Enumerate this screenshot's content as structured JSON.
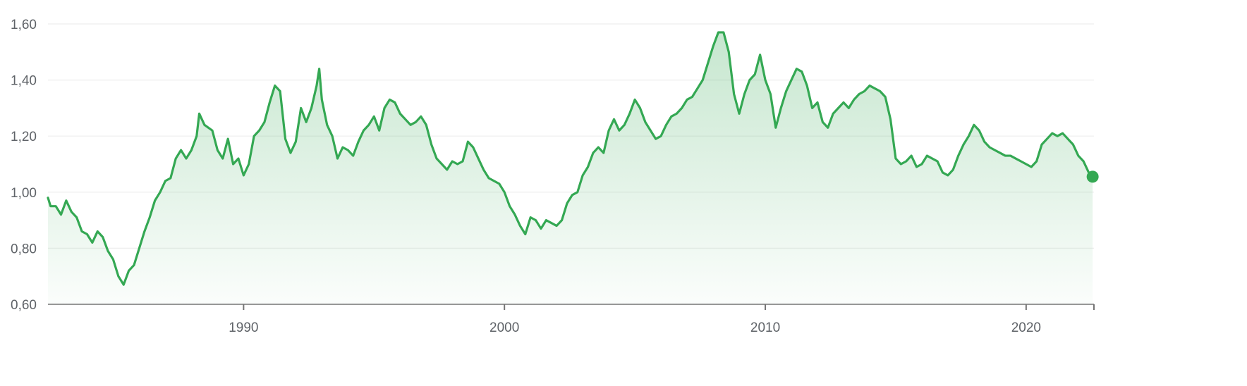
{
  "colors": {
    "line": "#34a853",
    "area_top": "#34a853",
    "grid": "#eeeeee",
    "axis": "#757575",
    "tick_text": "#5f6368"
  },
  "chart_data": {
    "type": "area",
    "title": "",
    "xlabel": "",
    "ylabel": "",
    "xlim": [
      1982.5,
      2022.6
    ],
    "ylim": [
      0.6,
      1.6
    ],
    "grid": true,
    "legend": "none",
    "y_ticks": [
      {
        "value": 0.6,
        "label": "0,60"
      },
      {
        "value": 0.8,
        "label": "0,80"
      },
      {
        "value": 1.0,
        "label": "1,00"
      },
      {
        "value": 1.2,
        "label": "1,20"
      },
      {
        "value": 1.4,
        "label": "1,40"
      },
      {
        "value": 1.6,
        "label": "1,60"
      }
    ],
    "x_ticks": [
      {
        "value": 1990,
        "label": "1990"
      },
      {
        "value": 2000,
        "label": "2000"
      },
      {
        "value": 2010,
        "label": "2010"
      },
      {
        "value": 2020,
        "label": "2020"
      }
    ],
    "series": [
      {
        "points": [
          [
            1982.5,
            0.98
          ],
          [
            1982.6,
            0.95
          ],
          [
            1982.8,
            0.95
          ],
          [
            1983.0,
            0.92
          ],
          [
            1983.2,
            0.97
          ],
          [
            1983.4,
            0.93
          ],
          [
            1983.6,
            0.91
          ],
          [
            1983.8,
            0.86
          ],
          [
            1984.0,
            0.85
          ],
          [
            1984.2,
            0.82
          ],
          [
            1984.4,
            0.86
          ],
          [
            1984.6,
            0.84
          ],
          [
            1984.8,
            0.79
          ],
          [
            1985.0,
            0.76
          ],
          [
            1985.2,
            0.7
          ],
          [
            1985.4,
            0.67
          ],
          [
            1985.6,
            0.72
          ],
          [
            1985.8,
            0.74
          ],
          [
            1986.0,
            0.8
          ],
          [
            1986.2,
            0.86
          ],
          [
            1986.4,
            0.91
          ],
          [
            1986.6,
            0.97
          ],
          [
            1986.8,
            1.0
          ],
          [
            1987.0,
            1.04
          ],
          [
            1987.2,
            1.05
          ],
          [
            1987.4,
            1.12
          ],
          [
            1987.6,
            1.15
          ],
          [
            1987.8,
            1.12
          ],
          [
            1988.0,
            1.15
          ],
          [
            1988.2,
            1.2
          ],
          [
            1988.3,
            1.28
          ],
          [
            1988.5,
            1.24
          ],
          [
            1988.8,
            1.22
          ],
          [
            1989.0,
            1.15
          ],
          [
            1989.2,
            1.12
          ],
          [
            1989.4,
            1.19
          ],
          [
            1989.6,
            1.1
          ],
          [
            1989.8,
            1.12
          ],
          [
            1990.0,
            1.06
          ],
          [
            1990.2,
            1.1
          ],
          [
            1990.4,
            1.2
          ],
          [
            1990.6,
            1.22
          ],
          [
            1990.8,
            1.25
          ],
          [
            1991.0,
            1.32
          ],
          [
            1991.2,
            1.38
          ],
          [
            1991.4,
            1.36
          ],
          [
            1991.6,
            1.19
          ],
          [
            1991.8,
            1.14
          ],
          [
            1992.0,
            1.18
          ],
          [
            1992.2,
            1.3
          ],
          [
            1992.4,
            1.25
          ],
          [
            1992.6,
            1.3
          ],
          [
            1992.8,
            1.38
          ],
          [
            1992.9,
            1.44
          ],
          [
            1993.0,
            1.33
          ],
          [
            1993.2,
            1.24
          ],
          [
            1993.4,
            1.2
          ],
          [
            1993.6,
            1.12
          ],
          [
            1993.8,
            1.16
          ],
          [
            1994.0,
            1.15
          ],
          [
            1994.2,
            1.13
          ],
          [
            1994.4,
            1.18
          ],
          [
            1994.6,
            1.22
          ],
          [
            1994.8,
            1.24
          ],
          [
            1995.0,
            1.27
          ],
          [
            1995.2,
            1.22
          ],
          [
            1995.4,
            1.3
          ],
          [
            1995.6,
            1.33
          ],
          [
            1995.8,
            1.32
          ],
          [
            1996.0,
            1.28
          ],
          [
            1996.2,
            1.26
          ],
          [
            1996.4,
            1.24
          ],
          [
            1996.6,
            1.25
          ],
          [
            1996.8,
            1.27
          ],
          [
            1997.0,
            1.24
          ],
          [
            1997.2,
            1.17
          ],
          [
            1997.4,
            1.12
          ],
          [
            1997.6,
            1.1
          ],
          [
            1997.8,
            1.08
          ],
          [
            1998.0,
            1.11
          ],
          [
            1998.2,
            1.1
          ],
          [
            1998.4,
            1.11
          ],
          [
            1998.6,
            1.18
          ],
          [
            1998.8,
            1.16
          ],
          [
            1999.0,
            1.12
          ],
          [
            1999.2,
            1.08
          ],
          [
            1999.4,
            1.05
          ],
          [
            1999.6,
            1.04
          ],
          [
            1999.8,
            1.03
          ],
          [
            2000.0,
            1.0
          ],
          [
            2000.2,
            0.95
          ],
          [
            2000.4,
            0.92
          ],
          [
            2000.6,
            0.88
          ],
          [
            2000.8,
            0.85
          ],
          [
            2001.0,
            0.91
          ],
          [
            2001.2,
            0.9
          ],
          [
            2001.4,
            0.87
          ],
          [
            2001.6,
            0.9
          ],
          [
            2001.8,
            0.89
          ],
          [
            2002.0,
            0.88
          ],
          [
            2002.2,
            0.9
          ],
          [
            2002.4,
            0.96
          ],
          [
            2002.6,
            0.99
          ],
          [
            2002.8,
            1.0
          ],
          [
            2003.0,
            1.06
          ],
          [
            2003.2,
            1.09
          ],
          [
            2003.4,
            1.14
          ],
          [
            2003.6,
            1.16
          ],
          [
            2003.8,
            1.14
          ],
          [
            2004.0,
            1.22
          ],
          [
            2004.2,
            1.26
          ],
          [
            2004.4,
            1.22
          ],
          [
            2004.6,
            1.24
          ],
          [
            2004.8,
            1.28
          ],
          [
            2005.0,
            1.33
          ],
          [
            2005.2,
            1.3
          ],
          [
            2005.4,
            1.25
          ],
          [
            2005.6,
            1.22
          ],
          [
            2005.8,
            1.19
          ],
          [
            2006.0,
            1.2
          ],
          [
            2006.2,
            1.24
          ],
          [
            2006.4,
            1.27
          ],
          [
            2006.6,
            1.28
          ],
          [
            2006.8,
            1.3
          ],
          [
            2007.0,
            1.33
          ],
          [
            2007.2,
            1.34
          ],
          [
            2007.4,
            1.37
          ],
          [
            2007.6,
            1.4
          ],
          [
            2007.8,
            1.46
          ],
          [
            2008.0,
            1.52
          ],
          [
            2008.2,
            1.57
          ],
          [
            2008.4,
            1.57
          ],
          [
            2008.6,
            1.5
          ],
          [
            2008.8,
            1.35
          ],
          [
            2009.0,
            1.28
          ],
          [
            2009.2,
            1.35
          ],
          [
            2009.4,
            1.4
          ],
          [
            2009.6,
            1.42
          ],
          [
            2009.8,
            1.49
          ],
          [
            2010.0,
            1.4
          ],
          [
            2010.2,
            1.35
          ],
          [
            2010.4,
            1.23
          ],
          [
            2010.6,
            1.3
          ],
          [
            2010.8,
            1.36
          ],
          [
            2011.0,
            1.4
          ],
          [
            2011.2,
            1.44
          ],
          [
            2011.4,
            1.43
          ],
          [
            2011.6,
            1.38
          ],
          [
            2011.8,
            1.3
          ],
          [
            2012.0,
            1.32
          ],
          [
            2012.2,
            1.25
          ],
          [
            2012.4,
            1.23
          ],
          [
            2012.6,
            1.28
          ],
          [
            2012.8,
            1.3
          ],
          [
            2013.0,
            1.32
          ],
          [
            2013.2,
            1.3
          ],
          [
            2013.4,
            1.33
          ],
          [
            2013.6,
            1.35
          ],
          [
            2013.8,
            1.36
          ],
          [
            2014.0,
            1.38
          ],
          [
            2014.2,
            1.37
          ],
          [
            2014.4,
            1.36
          ],
          [
            2014.6,
            1.34
          ],
          [
            2014.8,
            1.26
          ],
          [
            2015.0,
            1.12
          ],
          [
            2015.2,
            1.1
          ],
          [
            2015.4,
            1.11
          ],
          [
            2015.6,
            1.13
          ],
          [
            2015.8,
            1.09
          ],
          [
            2016.0,
            1.1
          ],
          [
            2016.2,
            1.13
          ],
          [
            2016.4,
            1.12
          ],
          [
            2016.6,
            1.11
          ],
          [
            2016.8,
            1.07
          ],
          [
            2017.0,
            1.06
          ],
          [
            2017.2,
            1.08
          ],
          [
            2017.4,
            1.13
          ],
          [
            2017.6,
            1.17
          ],
          [
            2017.8,
            1.2
          ],
          [
            2018.0,
            1.24
          ],
          [
            2018.2,
            1.22
          ],
          [
            2018.4,
            1.18
          ],
          [
            2018.6,
            1.16
          ],
          [
            2018.8,
            1.15
          ],
          [
            2019.0,
            1.14
          ],
          [
            2019.2,
            1.13
          ],
          [
            2019.4,
            1.13
          ],
          [
            2019.6,
            1.12
          ],
          [
            2019.8,
            1.11
          ],
          [
            2020.0,
            1.1
          ],
          [
            2020.2,
            1.09
          ],
          [
            2020.4,
            1.11
          ],
          [
            2020.6,
            1.17
          ],
          [
            2020.8,
            1.19
          ],
          [
            2021.0,
            1.21
          ],
          [
            2021.2,
            1.2
          ],
          [
            2021.4,
            1.21
          ],
          [
            2021.6,
            1.19
          ],
          [
            2021.8,
            1.17
          ],
          [
            2022.0,
            1.13
          ],
          [
            2022.2,
            1.11
          ],
          [
            2022.4,
            1.07
          ],
          [
            2022.55,
            1.055
          ]
        ]
      }
    ]
  }
}
